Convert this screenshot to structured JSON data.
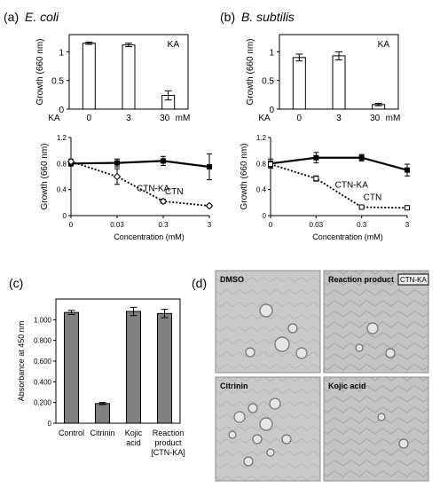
{
  "panels": {
    "a": {
      "label": "(a)",
      "organism": "E. coli"
    },
    "b": {
      "label": "(b)",
      "organism": "B. subtilis"
    },
    "c": {
      "label": "(c)"
    },
    "d": {
      "label": "(d)"
    }
  },
  "chart_data": [
    {
      "id": "a_bar",
      "type": "bar",
      "panel": "a",
      "annotation": "KA",
      "ylabel": "Growth (660 nm)",
      "x_axis_prefix": "KA",
      "categories": [
        "0",
        "3",
        "30"
      ],
      "unit": "mM",
      "values": [
        1.15,
        1.12,
        0.24
      ],
      "errors": [
        0.02,
        0.03,
        0.08
      ],
      "ylim": [
        0,
        1.3
      ],
      "yticks": [
        "0",
        "0.5",
        "1"
      ],
      "bar_color": "#ffffff"
    },
    {
      "id": "b_bar",
      "type": "bar",
      "panel": "b",
      "annotation": "KA",
      "ylabel": "Growth (660 nm)",
      "x_axis_prefix": "KA",
      "categories": [
        "0",
        "3",
        "30"
      ],
      "unit": "mM",
      "values": [
        0.9,
        0.93,
        0.08
      ],
      "errors": [
        0.06,
        0.07,
        0.02
      ],
      "ylim": [
        0,
        1.3
      ],
      "yticks": [
        "0",
        "0.5",
        "1"
      ],
      "bar_color": "#ffffff"
    },
    {
      "id": "a_line",
      "type": "line",
      "panel": "a",
      "xlabel": "Concentration (mM)",
      "ylabel": "Growth (660 nm)",
      "categories": [
        "0",
        "0.03",
        "0.3",
        "3"
      ],
      "ylim": [
        0,
        1.2
      ],
      "yticks": [
        "0",
        "0.4",
        "0.8",
        "1.2"
      ],
      "series": [
        {
          "name": "CTN-KA",
          "values": [
            0.8,
            0.81,
            0.84,
            0.75
          ],
          "errors": [
            0.04,
            0.06,
            0.07,
            0.2
          ],
          "style": "solid",
          "marker": "filled-square"
        },
        {
          "name": "CTN",
          "values": [
            0.83,
            0.6,
            0.22,
            0.15
          ],
          "errors": [
            0.04,
            0.12,
            0.03,
            0.02
          ],
          "style": "dotted",
          "marker": "open-diamond"
        }
      ]
    },
    {
      "id": "b_line",
      "type": "line",
      "panel": "b",
      "xlabel": "Concentration (mM)",
      "ylabel": "Growth (660 nm)",
      "categories": [
        "0",
        "0.03",
        "0.3",
        "3"
      ],
      "ylim": [
        0,
        1.2
      ],
      "yticks": [
        "0",
        "0.4",
        "0.8",
        "1.2"
      ],
      "series": [
        {
          "name": "CTN-KA",
          "values": [
            0.8,
            0.89,
            0.89,
            0.7
          ],
          "errors": [
            0.07,
            0.08,
            0.05,
            0.09
          ],
          "style": "solid",
          "marker": "filled-square"
        },
        {
          "name": "CTN",
          "values": [
            0.79,
            0.57,
            0.13,
            0.12
          ],
          "errors": [
            0.05,
            0.04,
            0.01,
            0.01
          ],
          "style": "dotted",
          "marker": "open-square"
        }
      ]
    },
    {
      "id": "c_bar",
      "type": "bar",
      "panel": "c",
      "ylabel": "Absorbance at 450 nm",
      "categories": [
        [
          "Control"
        ],
        [
          "Citrinin"
        ],
        [
          "Kojic",
          "acid"
        ],
        [
          "Reaction",
          "product",
          "[CTN-KA]"
        ]
      ],
      "values": [
        1.07,
        0.19,
        1.08,
        1.06
      ],
      "errors": [
        0.02,
        0.01,
        0.04,
        0.04
      ],
      "ylim": [
        0,
        1.2
      ],
      "yticks": [
        "0",
        "0.200",
        "0.400",
        "0.600",
        "0.800",
        "1.000"
      ],
      "bar_color": "#808080"
    }
  ],
  "photos": [
    {
      "label": "DMSO"
    },
    {
      "label": "Reaction product",
      "tag": "CTN-KA"
    },
    {
      "label": "Citrinin"
    },
    {
      "label": "Kojic acid"
    }
  ]
}
